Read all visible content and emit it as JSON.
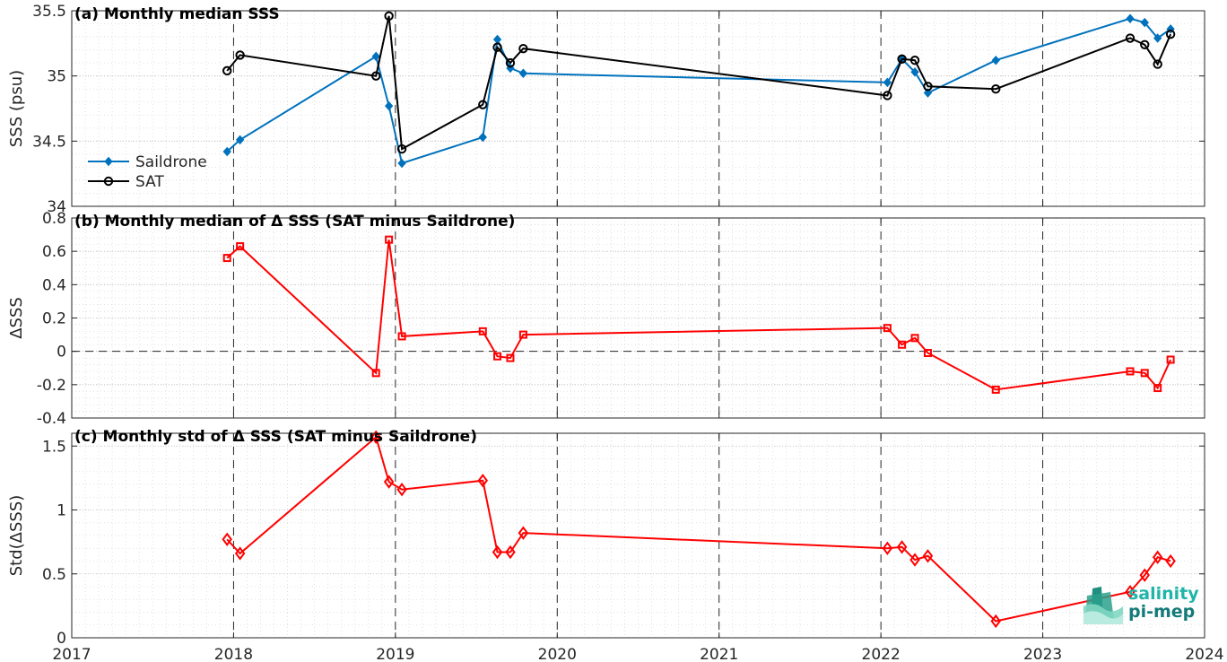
{
  "colors": {
    "saildrone": "#0072BD",
    "sat": "#000000",
    "delta": "#FF0000"
  },
  "x_axis": {
    "ticks": [
      2017,
      2018,
      2019,
      2020,
      2021,
      2022,
      2023,
      2024
    ],
    "range": [
      2017,
      2024
    ]
  },
  "logo": {
    "line1": "salinity",
    "line2": "pi-mep"
  },
  "chart_data": [
    {
      "type": "line",
      "title": "(a) Monthly median SSS",
      "ylabel": "SSS (psu)",
      "ylim": [
        34,
        35.5
      ],
      "yticks": [
        34,
        34.5,
        35,
        35.5
      ],
      "ytick_labels": [
        "34",
        "34.5",
        "35",
        "35.5"
      ],
      "grid": true,
      "legend_position": "left",
      "series": [
        {
          "name": "Saildrone",
          "marker": "diamond-filled",
          "x": [
            2017.96,
            2018.04,
            2018.88,
            2018.96,
            2019.04,
            2019.54,
            2019.63,
            2019.71,
            2019.79,
            2022.04,
            2022.13,
            2022.21,
            2022.29,
            2022.71,
            2023.54,
            2023.63,
            2023.71,
            2023.79
          ],
          "y": [
            34.42,
            34.51,
            35.15,
            34.77,
            34.33,
            34.53,
            35.28,
            35.06,
            35.02,
            34.95,
            35.13,
            35.03,
            34.87,
            35.12,
            35.44,
            35.41,
            35.29,
            35.36
          ]
        },
        {
          "name": "SAT",
          "marker": "circle-open",
          "x": [
            2017.96,
            2018.04,
            2018.88,
            2018.96,
            2019.04,
            2019.54,
            2019.63,
            2019.71,
            2019.79,
            2022.04,
            2022.13,
            2022.21,
            2022.29,
            2022.71,
            2023.54,
            2023.63,
            2023.71,
            2023.79
          ],
          "y": [
            35.04,
            35.16,
            35.0,
            35.46,
            34.44,
            34.78,
            35.22,
            35.1,
            35.21,
            34.85,
            35.13,
            35.12,
            34.92,
            34.9,
            35.29,
            35.24,
            35.09,
            35.32
          ]
        }
      ]
    },
    {
      "type": "line",
      "title": "(b) Monthly median of Δ SSS (SAT minus Saildrone)",
      "ylabel": "ΔSSS",
      "ylim": [
        -0.4,
        0.8
      ],
      "yticks": [
        -0.4,
        -0.2,
        0,
        0.2,
        0.4,
        0.6,
        0.8
      ],
      "ytick_labels": [
        "-0.4",
        "-0.2",
        "0",
        "0.2",
        "0.4",
        "0.6",
        "0.8"
      ],
      "reference_line": 0,
      "grid": true,
      "series": [
        {
          "marker": "square-open",
          "x": [
            2017.96,
            2018.04,
            2018.88,
            2018.96,
            2019.04,
            2019.54,
            2019.63,
            2019.71,
            2019.79,
            2022.04,
            2022.13,
            2022.21,
            2022.29,
            2022.71,
            2023.54,
            2023.63,
            2023.71,
            2023.79
          ],
          "y": [
            0.56,
            0.63,
            -0.13,
            0.67,
            0.09,
            0.12,
            -0.03,
            -0.04,
            0.1,
            0.14,
            0.04,
            0.08,
            -0.01,
            -0.23,
            -0.12,
            -0.13,
            -0.22,
            -0.05
          ]
        }
      ]
    },
    {
      "type": "line",
      "title": "(c) Monthly std of Δ SSS (SAT minus Saildrone)",
      "ylabel": "Std(ΔSSS)",
      "ylim": [
        0,
        1.6
      ],
      "yticks": [
        0,
        0.5,
        1,
        1.5
      ],
      "ytick_labels": [
        "0",
        "0.5",
        "1",
        "1.5"
      ],
      "grid": true,
      "series": [
        {
          "marker": "diamond-open",
          "x": [
            2017.96,
            2018.04,
            2018.88,
            2018.96,
            2019.04,
            2019.54,
            2019.63,
            2019.71,
            2019.79,
            2022.04,
            2022.13,
            2022.21,
            2022.29,
            2022.71,
            2023.54,
            2023.63,
            2023.71,
            2023.79
          ],
          "y": [
            0.77,
            0.66,
            1.57,
            1.22,
            1.16,
            1.23,
            0.67,
            0.67,
            0.82,
            0.7,
            0.71,
            0.61,
            0.64,
            0.13,
            0.36,
            0.49,
            0.63,
            0.6
          ]
        }
      ]
    }
  ]
}
